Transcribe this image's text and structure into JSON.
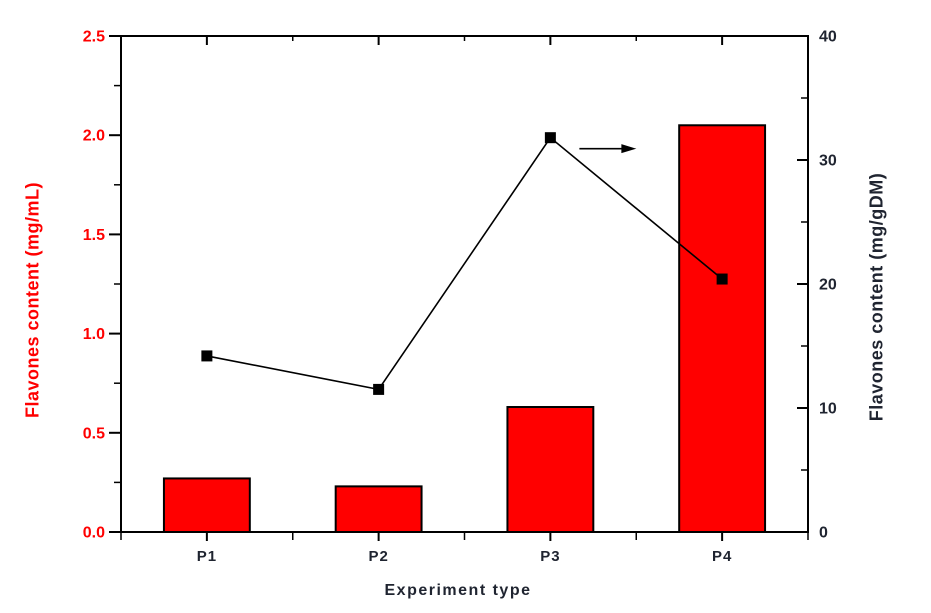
{
  "chart_data": {
    "type": "bar",
    "categories": [
      "P1",
      "P2",
      "P3",
      "P4"
    ],
    "series": [
      {
        "name": "Flavones content (mg/mL)",
        "type": "bar",
        "axis": "left",
        "color": "#ff0000",
        "outline_color": "#000000",
        "values": [
          0.27,
          0.23,
          0.63,
          2.05
        ]
      },
      {
        "name": "Flavones content (mg/gDM)",
        "type": "line",
        "axis": "right",
        "color": "#000000",
        "marker": "filled-square",
        "values": [
          14.2,
          11.5,
          31.8,
          20.4
        ]
      }
    ],
    "x_axis": {
      "label": "Experiment type",
      "tick_labels": [
        "P1",
        "P2",
        "P3",
        "P4"
      ]
    },
    "left_axis": {
      "label": "Flavones content (mg/mL)",
      "min": 0,
      "max": 2.5,
      "ticks": [
        "0.0",
        "0.5",
        "1.0",
        "1.5",
        "2.0",
        "2.5"
      ],
      "minor_step": 0.25,
      "color": "#ff0000"
    },
    "right_axis": {
      "label": "Flavones content (mg/gDM)",
      "min": 0,
      "max": 40,
      "ticks": [
        "0",
        "10",
        "20",
        "30",
        "40"
      ],
      "minor_step": 5,
      "color": "#1f2430"
    },
    "annotation": {
      "type": "arrow-right",
      "anchor_category": "P3",
      "meaning": "line series refers to right axis"
    },
    "grid": false,
    "legend": false,
    "frame": true,
    "background": "#ffffff"
  }
}
